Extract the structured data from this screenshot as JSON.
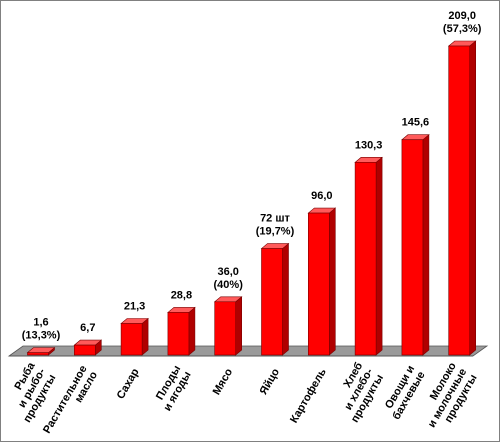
{
  "chart_data": {
    "type": "bar",
    "categories": [
      [
        "Рыба",
        "и рыбо-",
        "продукты"
      ],
      [
        "Растительное",
        "масло"
      ],
      [
        "Сахар"
      ],
      [
        "Плоды",
        "и ягоды"
      ],
      [
        "Мясо"
      ],
      [
        "Яйцо"
      ],
      [
        "Картофель"
      ],
      [
        "Хлеб",
        "и хлебо-",
        "продукты"
      ],
      [
        "Овощи и",
        "бахчевые"
      ],
      [
        "Молоко",
        "и молочные",
        "продукты"
      ]
    ],
    "values": [
      1.6,
      6.7,
      21.3,
      28.8,
      36.0,
      72,
      96.0,
      130.3,
      145.6,
      209.0
    ],
    "data_labels": [
      [
        "1,6",
        "(13,3%)"
      ],
      [
        "6,7"
      ],
      [
        "21,3"
      ],
      [
        "28,8"
      ],
      [
        "36,0",
        "(40%)"
      ],
      [
        "72 шт",
        "(19,7%)"
      ],
      [
        "96,0"
      ],
      [
        "130,3"
      ],
      [
        "145,6"
      ],
      [
        "209,0",
        "(57,3%)"
      ]
    ],
    "ylim": [
      0,
      209
    ],
    "grid": false,
    "legend": "none",
    "colors": {
      "bar_front": "#ff0000",
      "bar_side": "#b00000",
      "bar_top": "#ff5a5a",
      "bar_edge": "#7a0000",
      "floor": "#9a9a9a",
      "floor_edge": "#555555"
    }
  }
}
